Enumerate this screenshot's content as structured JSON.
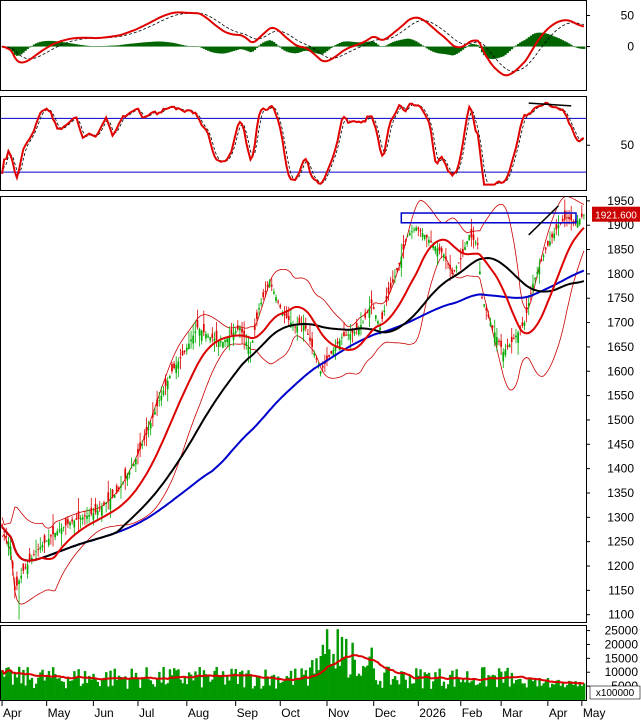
{
  "chart_data": [
    {
      "panel": "macd",
      "type": "line",
      "y_ticks": [
        {
          "value": 50,
          "label": "50"
        },
        {
          "value": 0,
          "label": "0"
        }
      ],
      "ylim": [
        -70,
        75
      ],
      "colors": {
        "macd": "#e00000",
        "signal": "#000000",
        "histogram": "#006400"
      }
    },
    {
      "panel": "stochastic",
      "type": "line",
      "y_ticks": [
        {
          "value": 50,
          "label": "50"
        }
      ],
      "levels": [
        80,
        20
      ],
      "ylim": [
        0,
        105
      ],
      "colors": {
        "k": "#e00000",
        "d": "#000000",
        "levels": "#0000cc"
      }
    },
    {
      "panel": "price",
      "type": "candlestick",
      "y_ticks": [
        {
          "value": 1950,
          "label": "1950"
        },
        {
          "value": 1900,
          "label": "1900"
        },
        {
          "value": 1850,
          "label": "1850"
        },
        {
          "value": 1800,
          "label": "1800"
        },
        {
          "value": 1750,
          "label": "1750"
        },
        {
          "value": 1700,
          "label": "1700"
        },
        {
          "value": 1650,
          "label": "1650"
        },
        {
          "value": 1600,
          "label": "1600"
        },
        {
          "value": 1550,
          "label": "1550"
        },
        {
          "value": 1500,
          "label": "1500"
        },
        {
          "value": 1450,
          "label": "1450"
        },
        {
          "value": 1400,
          "label": "1400"
        },
        {
          "value": 1350,
          "label": "1350"
        },
        {
          "value": 1300,
          "label": "1300"
        },
        {
          "value": 1250,
          "label": "1250"
        },
        {
          "value": 1200,
          "label": "1200"
        },
        {
          "value": 1150,
          "label": "1150"
        },
        {
          "value": 1100,
          "label": "1100"
        }
      ],
      "ylim": [
        1085,
        1960
      ],
      "last_price": {
        "value": 1921.6,
        "label": "1921.600",
        "color": "#cc0000"
      },
      "resistance_zone": [
        1905,
        1925
      ],
      "colors": {
        "up": "#00aa00",
        "down": "#dd0000",
        "ma_short": "#dd0000",
        "ma_mid": "#000000",
        "ma_long": "#0000cc",
        "bands": "#cc0000"
      }
    },
    {
      "panel": "volume",
      "type": "bar",
      "y_ticks": [
        {
          "value": 25000,
          "label": "25000"
        },
        {
          "value": 20000,
          "label": "20000"
        },
        {
          "value": 15000,
          "label": "15000"
        },
        {
          "value": 10000,
          "label": "10000"
        },
        {
          "value": 5000,
          "label": "5000"
        }
      ],
      "ylim": [
        0,
        27000
      ],
      "multiplier_label": "x100000",
      "colors": {
        "bars": "#009900",
        "ma": "#dd0000"
      }
    }
  ],
  "x_axis": {
    "labels": [
      "Apr",
      "May",
      "Jun",
      "Jul",
      "Aug",
      "Sep",
      "Oct",
      "Nov",
      "Dec",
      "2026",
      "Feb",
      "Mar",
      "Apr",
      "May"
    ]
  }
}
